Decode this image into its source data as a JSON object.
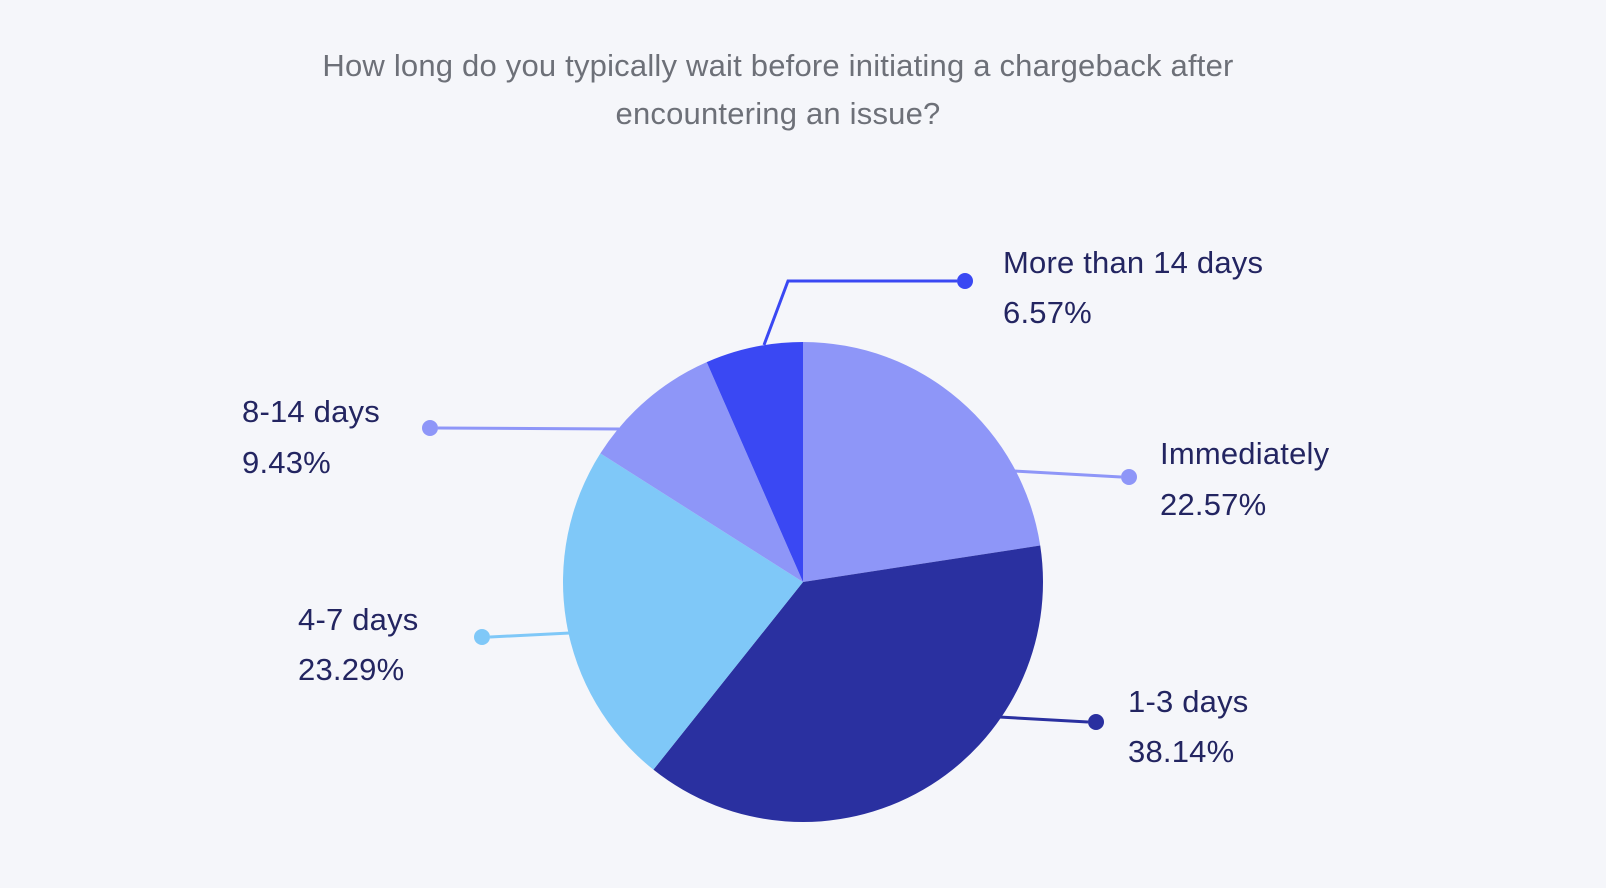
{
  "background_color": "#f5f6fa",
  "title": {
    "line1": "How long do you typically wait before initiating a chargeback after",
    "line2": "encountering an issue?",
    "color": "#6d7078"
  },
  "chart_data": {
    "type": "pie",
    "title": "How long do you typically wait before initiating a chargeback after encountering an issue?",
    "categories": [
      "Immediately",
      "1-3 days",
      "4-7 days",
      "8-14 days",
      "More than 14 days"
    ],
    "values": [
      22.57,
      38.14,
      23.29,
      9.43,
      6.57
    ],
    "unit": "%",
    "direction": "clockwise",
    "start_angle": "top",
    "slice_colors": [
      "#8e96f8",
      "#2a30a0",
      "#7fc8f8",
      "#8e96f8",
      "#3a48f3"
    ],
    "text_color": "#232561",
    "legend_position": "callouts",
    "labels": [
      {
        "name": "Immediately",
        "percent": "22.57%"
      },
      {
        "name": "1-3 days",
        "percent": "38.14%"
      },
      {
        "name": "4-7 days",
        "percent": "23.29%"
      },
      {
        "name": "8-14 days",
        "percent": "9.43%"
      },
      {
        "name": "More than 14 days",
        "percent": "6.57%"
      }
    ]
  }
}
